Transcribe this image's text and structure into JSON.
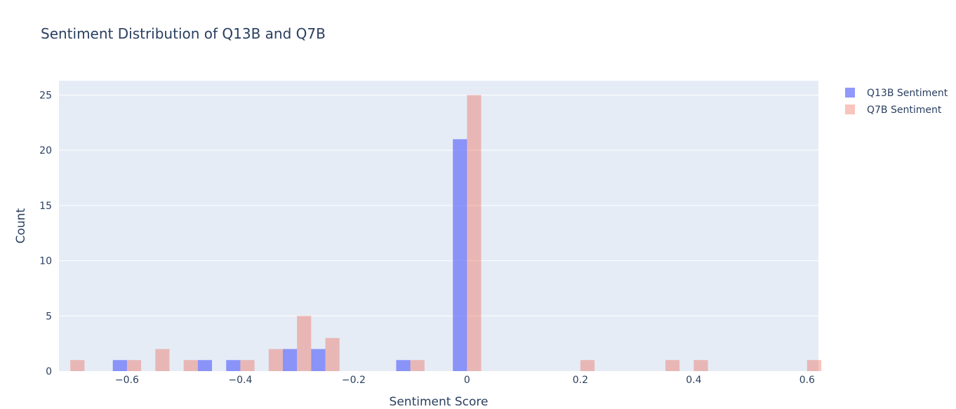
{
  "chart_data": {
    "type": "bar",
    "title": "Sentiment Distribution of Q13B and Q7B",
    "xlabel": "Sentiment Score",
    "ylabel": "Count",
    "xlim": [
      -0.72,
      0.62
    ],
    "ylim": [
      0,
      26.3
    ],
    "x_ticks": [
      -0.6,
      -0.4,
      -0.2,
      0,
      0.2,
      0.4,
      0.6
    ],
    "x_tick_labels": [
      "−0.6",
      "−0.4",
      "−0.2",
      "0",
      "0.2",
      "0.4",
      "0.6"
    ],
    "y_ticks": [
      0,
      5,
      10,
      15,
      20,
      25
    ],
    "y_tick_labels": [
      "0",
      "5",
      "10",
      "15",
      "20",
      "25"
    ],
    "bin_width": 0.05,
    "grid": true,
    "legend_position": "top-right",
    "barmode": "group",
    "series": [
      {
        "name": "Q13B Sentiment",
        "color": "#636efa",
        "opacity": 0.7,
        "bins": [
          {
            "x": -0.6,
            "count": 1
          },
          {
            "x": -0.45,
            "count": 1
          },
          {
            "x": -0.4,
            "count": 1
          },
          {
            "x": -0.3,
            "count": 2
          },
          {
            "x": -0.25,
            "count": 2
          },
          {
            "x": -0.1,
            "count": 1
          },
          {
            "x": 0,
            "count": 21
          }
        ]
      },
      {
        "name": "Q7B Sentiment",
        "color": "#ef553b",
        "opacity": 0.35,
        "bins": [
          {
            "x": -0.7,
            "count": 1
          },
          {
            "x": -0.6,
            "count": 1
          },
          {
            "x": -0.55,
            "count": 2
          },
          {
            "x": -0.5,
            "count": 1
          },
          {
            "x": -0.4,
            "count": 1
          },
          {
            "x": -0.35,
            "count": 2
          },
          {
            "x": -0.3,
            "count": 5
          },
          {
            "x": -0.25,
            "count": 3
          },
          {
            "x": -0.1,
            "count": 1
          },
          {
            "x": 0,
            "count": 25
          },
          {
            "x": 0.2,
            "count": 1
          },
          {
            "x": 0.35,
            "count": 1
          },
          {
            "x": 0.4,
            "count": 1
          },
          {
            "x": 0.6,
            "count": 1
          }
        ]
      }
    ]
  }
}
